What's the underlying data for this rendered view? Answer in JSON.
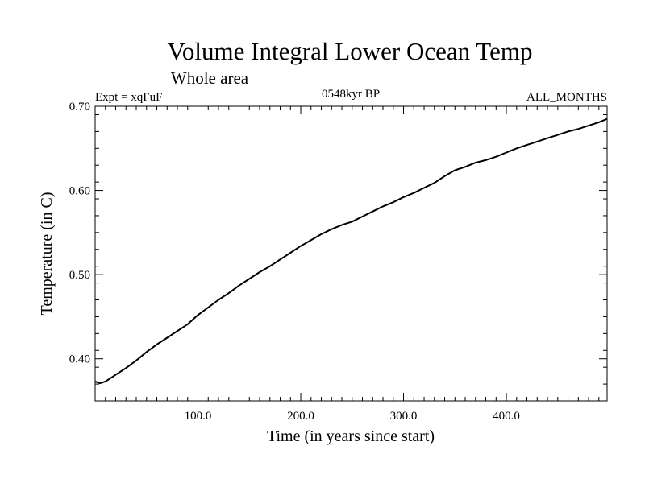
{
  "chart_data": {
    "type": "line",
    "title": "Volume Integral Lower Ocean Temp",
    "subtitle": "Whole area",
    "expt_label": "Expt = xqFuF",
    "period_label": "0548kyr BP",
    "months_label": "ALL_MONTHS",
    "xlabel": "Time (in years since start)",
    "ylabel": "Temperature (in C)",
    "xlim": [
      0,
      498
    ],
    "ylim": [
      0.35,
      0.7
    ],
    "x_ticks": [
      100,
      200,
      300,
      400
    ],
    "x_tick_labels": [
      "100.0",
      "200.0",
      "300.0",
      "400.0"
    ],
    "y_ticks": [
      0.4,
      0.5,
      0.6,
      0.7
    ],
    "y_tick_labels": [
      "0.40",
      "0.50",
      "0.60",
      "0.70"
    ],
    "grid": false,
    "series": [
      {
        "name": "Volume Integral Lower Ocean Temp",
        "color": "#000000",
        "x": [
          0,
          5,
          10,
          20,
          30,
          40,
          50,
          60,
          70,
          80,
          90,
          100,
          110,
          120,
          130,
          140,
          150,
          160,
          170,
          180,
          190,
          200,
          210,
          220,
          230,
          240,
          250,
          260,
          270,
          280,
          290,
          300,
          310,
          320,
          330,
          340,
          350,
          360,
          370,
          380,
          390,
          400,
          410,
          420,
          430,
          440,
          450,
          460,
          470,
          480,
          490,
          498
        ],
        "values": [
          0.373,
          0.371,
          0.373,
          0.381,
          0.389,
          0.398,
          0.408,
          0.417,
          0.425,
          0.433,
          0.441,
          0.452,
          0.461,
          0.47,
          0.478,
          0.487,
          0.495,
          0.503,
          0.51,
          0.518,
          0.526,
          0.534,
          0.541,
          0.548,
          0.554,
          0.559,
          0.563,
          0.569,
          0.575,
          0.581,
          0.586,
          0.592,
          0.597,
          0.603,
          0.609,
          0.617,
          0.624,
          0.628,
          0.633,
          0.636,
          0.64,
          0.645,
          0.65,
          0.654,
          0.658,
          0.662,
          0.666,
          0.67,
          0.673,
          0.677,
          0.681,
          0.685
        ]
      }
    ]
  }
}
